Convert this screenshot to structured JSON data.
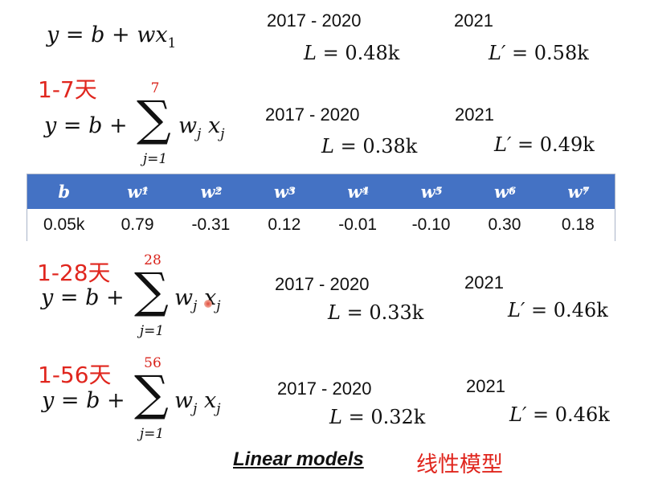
{
  "models": [
    {
      "label": "",
      "formula": {
        "lhs": "y",
        "eq": "=",
        "b": "b",
        "plus": "+",
        "w": "w",
        "x": "x",
        "sub": "1",
        "sum_top": "",
        "sum_bottom": ""
      },
      "train_years": "2017 - 2020",
      "train_loss": {
        "sym": "L",
        "eq": "=",
        "val": "0.48k"
      },
      "test_year": "2021",
      "test_loss": {
        "sym": "L′",
        "eq": "=",
        "val": "0.58k"
      }
    },
    {
      "label": "1-7天",
      "formula": {
        "lhs": "y",
        "eq": "=",
        "b": "b",
        "plus": "+",
        "w": "w",
        "x": "x",
        "sub": "j",
        "sum_top": "7",
        "sum_bottom": "j=1"
      },
      "train_years": "2017 - 2020",
      "train_loss": {
        "sym": "L",
        "eq": "=",
        "val": "0.38k"
      },
      "test_year": "2021",
      "test_loss": {
        "sym": "L′",
        "eq": "=",
        "val": "0.49k"
      }
    },
    {
      "label": "1-28天",
      "formula": {
        "lhs": "y",
        "eq": "=",
        "b": "b",
        "plus": "+",
        "w": "w",
        "x": "x",
        "sub": "j",
        "sum_top": "28",
        "sum_bottom": "j=1"
      },
      "train_years": "2017 - 2020",
      "train_loss": {
        "sym": "L",
        "eq": "=",
        "val": "0.33k"
      },
      "test_year": "2021",
      "test_loss": {
        "sym": "L′",
        "eq": "=",
        "val": "0.46k"
      }
    },
    {
      "label": "1-56天",
      "formula": {
        "lhs": "y",
        "eq": "=",
        "b": "b",
        "plus": "+",
        "w": "w",
        "x": "x",
        "sub": "j",
        "sum_top": "56",
        "sum_bottom": "j=1"
      },
      "train_years": "2017 - 2020",
      "train_loss": {
        "sym": "L",
        "eq": "=",
        "val": "0.32k"
      },
      "test_year": "2021",
      "test_loss": {
        "sym": "L′",
        "eq": "=",
        "val": "0.46k"
      }
    }
  ],
  "table": {
    "headers": [
      {
        "base": "b",
        "sub": "",
        "sup": ""
      },
      {
        "base": "w",
        "sub": "1",
        "sup": "*"
      },
      {
        "base": "w",
        "sub": "2",
        "sup": "*"
      },
      {
        "base": "w",
        "sub": "3",
        "sup": "*"
      },
      {
        "base": "w",
        "sub": "4",
        "sup": "*"
      },
      {
        "base": "w",
        "sub": "5",
        "sup": "*"
      },
      {
        "base": "w",
        "sub": "6",
        "sup": "*"
      },
      {
        "base": "w",
        "sub": "7",
        "sup": "*"
      }
    ],
    "values": [
      "0.05k",
      "0.79",
      "-0.31",
      "0.12",
      "-0.01",
      "-0.10",
      "0.30",
      "0.18"
    ]
  },
  "footer": {
    "title": "Linear models",
    "title_cn": "线性模型"
  },
  "colors": {
    "header_bg": "#4472c4",
    "accent_red": "#e0261e"
  }
}
